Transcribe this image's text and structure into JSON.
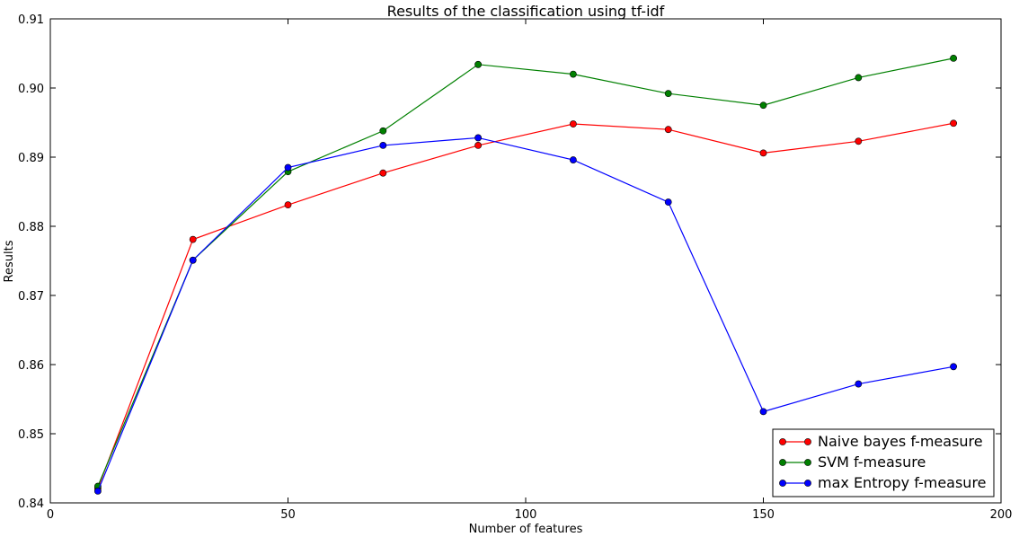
{
  "chart_data": {
    "type": "line",
    "title": "Results of the classification using tf-idf",
    "xlabel": "Number of features",
    "ylabel": "Results",
    "xlim": [
      0,
      200
    ],
    "ylim": [
      0.84,
      0.91
    ],
    "xticks": [
      0,
      50,
      100,
      150,
      200
    ],
    "yticks": [
      0.84,
      0.85,
      0.86,
      0.87,
      0.88,
      0.89,
      0.9,
      0.91
    ],
    "ytick_labels": [
      "0.84",
      "0.85",
      "0.86",
      "0.87",
      "0.88",
      "0.89",
      "0.90",
      "0.91"
    ],
    "grid": false,
    "legend_position": "bottom-right",
    "x": [
      10,
      30,
      50,
      70,
      90,
      110,
      130,
      150,
      170,
      190
    ],
    "series": [
      {
        "name": "Naive bayes f-measure",
        "color": "#ff0000",
        "values": [
          0.8421,
          0.8781,
          0.8831,
          0.8877,
          0.8917,
          0.8948,
          0.894,
          0.8906,
          0.8923,
          0.8949
        ]
      },
      {
        "name": "SVM f-measure",
        "color": "#008000",
        "values": [
          0.8424,
          0.8751,
          0.8879,
          0.8938,
          0.9034,
          0.902,
          0.8992,
          0.8975,
          0.9015,
          0.9043
        ]
      },
      {
        "name": "max Entropy f-measure",
        "color": "#0000ff",
        "values": [
          0.8417,
          0.8751,
          0.8885,
          0.8917,
          0.8928,
          0.8896,
          0.8835,
          0.8532,
          0.8572,
          0.8597
        ]
      }
    ]
  }
}
